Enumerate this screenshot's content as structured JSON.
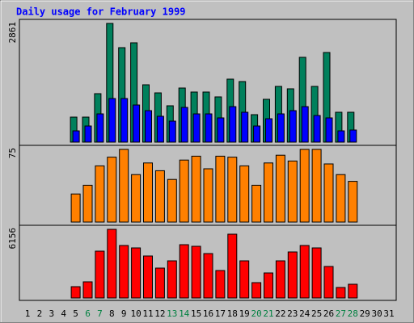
{
  "chart_data": [
    {
      "type": "bar",
      "title": "Daily usage for February 1999",
      "categories": [
        "1",
        "2",
        "3",
        "4",
        "5",
        "6",
        "7",
        "8",
        "9",
        "10",
        "11",
        "12",
        "13",
        "14",
        "15",
        "16",
        "17",
        "18",
        "19",
        "20",
        "21",
        "22",
        "23",
        "24",
        "25",
        "26",
        "27",
        "28",
        "29",
        "30",
        "31"
      ],
      "category_colors": [
        "#000000",
        "#000000",
        "#000000",
        "#000000",
        "#000000",
        "#008040",
        "#008040",
        "#000000",
        "#000000",
        "#000000",
        "#000000",
        "#000000",
        "#008040",
        "#008040",
        "#000000",
        "#000000",
        "#000000",
        "#000000",
        "#000000",
        "#008040",
        "#008040",
        "#000000",
        "#000000",
        "#000000",
        "#000000",
        "#000000",
        "#008040",
        "#008040",
        "#000000",
        "#000000",
        "#000000"
      ],
      "ylim": [
        0,
        2861
      ],
      "yticks": [
        2861
      ],
      "series": [
        {
          "color": "#00805c",
          "values": [
            null,
            null,
            null,
            null,
            603,
            603,
            1168,
            2861,
            2277,
            2394,
            1382,
            1187,
            876,
            1304,
            1207,
            1207,
            1090,
            1518,
            1460,
            662,
            1032,
            1343,
            1285,
            2044,
            1343,
            2160,
            720,
            720,
            null,
            null,
            null
          ]
        },
        {
          "color": "#0000ff",
          "values": [
            null,
            null,
            null,
            null,
            272,
            389,
            681,
            1051,
            1051,
            895,
            759,
            623,
            506,
            837,
            681,
            681,
            584,
            856,
            720,
            389,
            564,
            681,
            759,
            856,
            642,
            584,
            272,
            292,
            null,
            null,
            null
          ]
        }
      ]
    },
    {
      "type": "bar",
      "ylim": [
        0,
        75
      ],
      "yticks": [
        75
      ],
      "series": [
        {
          "color": "#ff8000",
          "values": [
            null,
            null,
            null,
            null,
            29,
            38,
            58,
            67,
            75,
            49,
            61,
            53,
            44,
            64,
            68,
            55,
            68,
            67,
            58,
            38,
            61,
            69,
            63,
            75,
            75,
            60,
            49,
            42,
            null,
            null,
            null
          ]
        }
      ]
    },
    {
      "type": "bar",
      "ylim": [
        0,
        6156
      ],
      "yticks": [
        6156
      ],
      "series": [
        {
          "color": "#ff0000",
          "values": [
            null,
            null,
            null,
            null,
            1014,
            1449,
            4200,
            6156,
            4707,
            4490,
            3766,
            2680,
            3331,
            4780,
            4635,
            3983,
            2462,
            5721,
            3331,
            1376,
            2245,
            3331,
            4128,
            4707,
            4490,
            2825,
            941,
            1231,
            null,
            null,
            null
          ]
        }
      ]
    }
  ]
}
